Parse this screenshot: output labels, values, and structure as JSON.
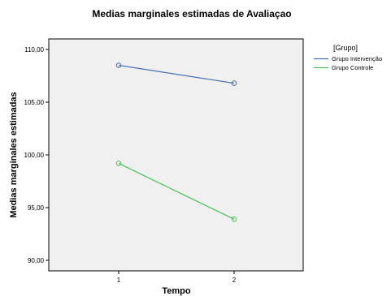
{
  "chart_data": {
    "type": "line",
    "title": "Medias marginales estimadas de Avaliaçao",
    "xlabel": "Tempo",
    "ylabel": "Medias marginales estimadas",
    "categories": [
      "1",
      "2"
    ],
    "y_ticks": [
      "90,00",
      "95,00",
      "100,00",
      "105,00",
      "110,00"
    ],
    "ylim": [
      89,
      111
    ],
    "grid": false,
    "legend_title": "[Grupo]",
    "legend_position": "right",
    "series": [
      {
        "name": "Grupo Intervenção",
        "values": [
          108.5,
          106.8
        ],
        "color": "#4a6fb5"
      },
      {
        "name": "Grupo Controle",
        "values": [
          99.2,
          93.9
        ],
        "color": "#4cc15a"
      }
    ],
    "plot_background": "#f0f0f0"
  }
}
